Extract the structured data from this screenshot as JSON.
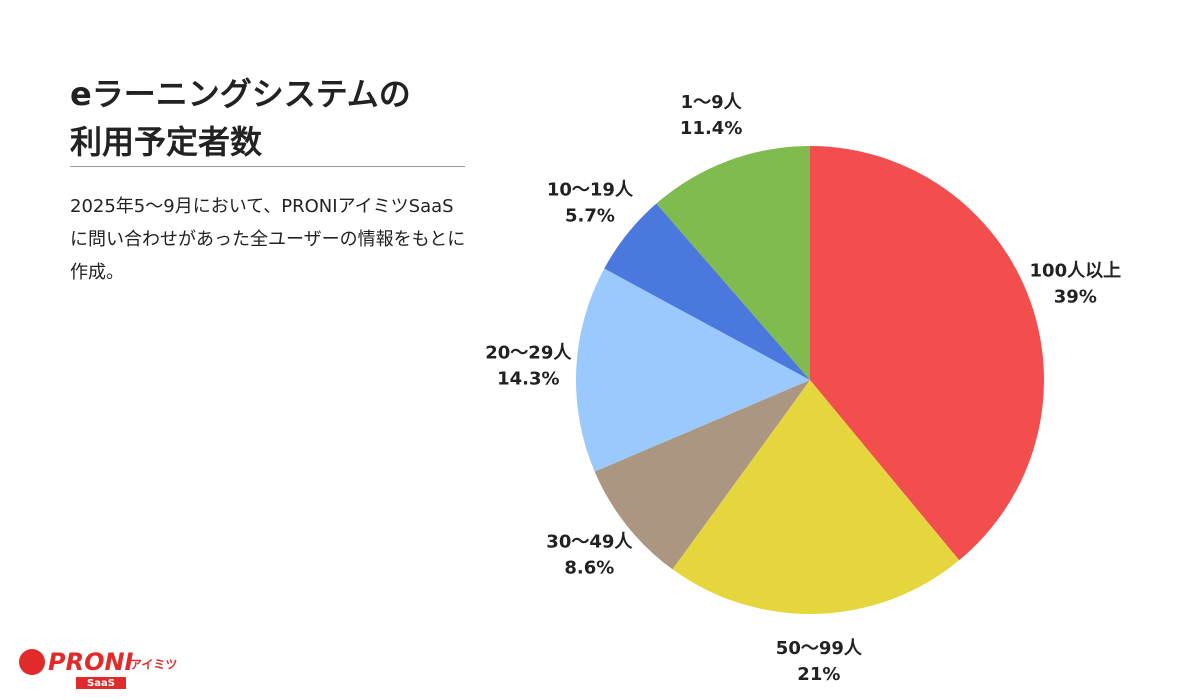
{
  "chart_data": {
    "type": "pie",
    "title": "eラーニングシステムの利用予定者数",
    "subtitle": "2025年5〜9月において、PRONIアイミツSaaSに問い合わせがあった全ユーザーの情報をもとに作成。",
    "categories": [
      "100人以上",
      "50〜99人",
      "30〜49人",
      "20〜29人",
      "10〜19人",
      "1〜9人"
    ],
    "values": [
      39,
      21,
      8.6,
      14.3,
      5.7,
      11.4
    ],
    "value_labels": [
      "39%",
      "21%",
      "8.6%",
      "14.3%",
      "5.7%",
      "11.4%"
    ],
    "colors": [
      "#f24e4e",
      "#e4d63c",
      "#ab9682",
      "#99c9fd",
      "#4a78dc",
      "#80bb50"
    ]
  },
  "logo": {
    "brand": "PRONI",
    "suffix": "アイミツ",
    "product": "SaaS"
  }
}
